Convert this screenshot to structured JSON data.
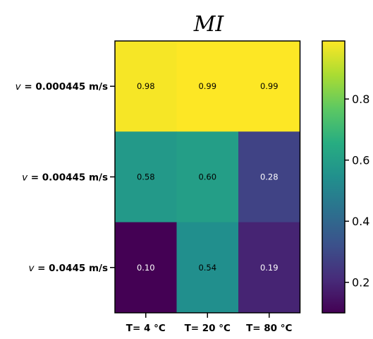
{
  "chart_data": {
    "type": "heatmap",
    "title": "MI",
    "rows": [
      {
        "prefix": "v",
        "label": " = 0.000445 m/s"
      },
      {
        "prefix": "v",
        "label": " = 0.00445 m/s"
      },
      {
        "prefix": "v",
        "label": " = 0.0445 m/s"
      }
    ],
    "columns": [
      "T= 4 °C",
      "T= 20 °C",
      "T= 80 °C"
    ],
    "values": [
      [
        0.98,
        0.99,
        0.99
      ],
      [
        0.58,
        0.6,
        0.28
      ],
      [
        0.1,
        0.54,
        0.19
      ]
    ],
    "value_labels": [
      [
        "0.98",
        "0.99",
        "0.99"
      ],
      [
        "0.58",
        "0.60",
        "0.28"
      ],
      [
        "0.10",
        "0.54",
        "0.19"
      ]
    ],
    "colormap": "viridis",
    "color_range": [
      0.1,
      0.99
    ],
    "colorbar_ticks": [
      {
        "value": 0.2,
        "label": "0.2"
      },
      {
        "value": 0.4,
        "label": "0.4"
      },
      {
        "value": 0.6,
        "label": "0.6"
      },
      {
        "value": 0.8,
        "label": "0.8"
      }
    ]
  }
}
